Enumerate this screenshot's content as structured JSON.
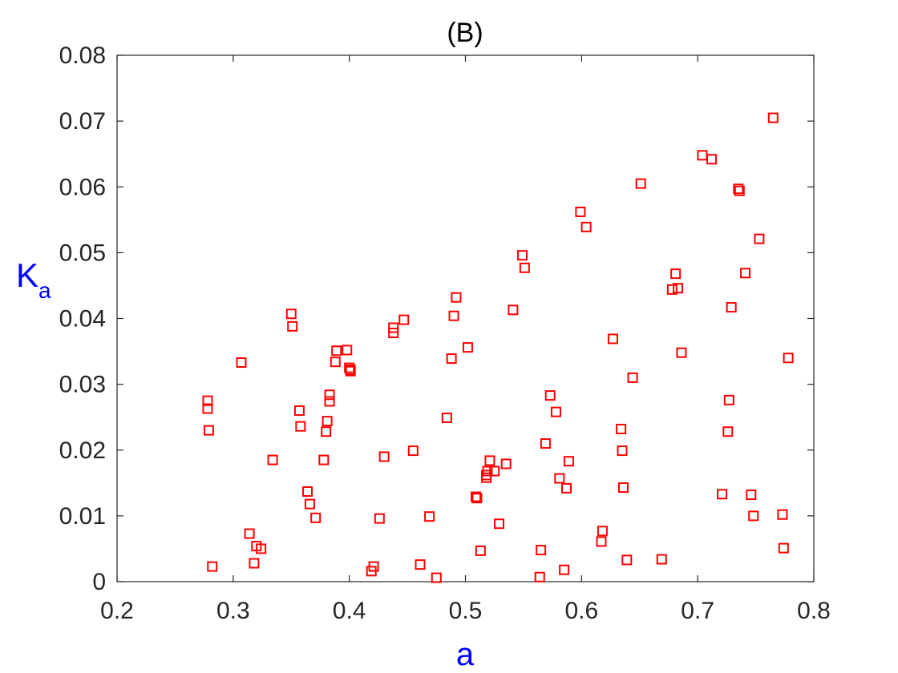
{
  "chart_data": {
    "type": "scatter",
    "title": "(B)",
    "xlabel": "a",
    "ylabel_main": "K",
    "ylabel_sub": "a",
    "xlim": [
      0.2,
      0.8
    ],
    "ylim": [
      0,
      0.08
    ],
    "xticks": [
      "0.2",
      "0.3",
      "0.4",
      "0.5",
      "0.6",
      "0.7",
      "0.8"
    ],
    "yticks": [
      "0",
      "0.01",
      "0.02",
      "0.03",
      "0.04",
      "0.05",
      "0.06",
      "0.07",
      "0.08"
    ],
    "grid": false,
    "marker": "square",
    "marker_color": "#ff0000",
    "axis_label_color": "#0000ff",
    "points": [
      {
        "x": 0.278,
        "y": 0.0275
      },
      {
        "x": 0.278,
        "y": 0.0263
      },
      {
        "x": 0.279,
        "y": 0.023
      },
      {
        "x": 0.282,
        "y": 0.0023
      },
      {
        "x": 0.307,
        "y": 0.0333
      },
      {
        "x": 0.314,
        "y": 0.0073
      },
      {
        "x": 0.318,
        "y": 0.0028
      },
      {
        "x": 0.32,
        "y": 0.0054
      },
      {
        "x": 0.324,
        "y": 0.005
      },
      {
        "x": 0.334,
        "y": 0.0185
      },
      {
        "x": 0.35,
        "y": 0.0407
      },
      {
        "x": 0.351,
        "y": 0.0388
      },
      {
        "x": 0.357,
        "y": 0.026
      },
      {
        "x": 0.358,
        "y": 0.0236
      },
      {
        "x": 0.364,
        "y": 0.0137
      },
      {
        "x": 0.366,
        "y": 0.0118
      },
      {
        "x": 0.371,
        "y": 0.0097
      },
      {
        "x": 0.378,
        "y": 0.0185
      },
      {
        "x": 0.38,
        "y": 0.0228
      },
      {
        "x": 0.381,
        "y": 0.0244
      },
      {
        "x": 0.383,
        "y": 0.0284
      },
      {
        "x": 0.383,
        "y": 0.0274
      },
      {
        "x": 0.388,
        "y": 0.0334
      },
      {
        "x": 0.389,
        "y": 0.0351
      },
      {
        "x": 0.398,
        "y": 0.0352
      },
      {
        "x": 0.4,
        "y": 0.0325
      },
      {
        "x": 0.401,
        "y": 0.032
      },
      {
        "x": 0.401,
        "y": 0.0322
      },
      {
        "x": 0.419,
        "y": 0.0016
      },
      {
        "x": 0.421,
        "y": 0.0023
      },
      {
        "x": 0.426,
        "y": 0.0096
      },
      {
        "x": 0.43,
        "y": 0.019
      },
      {
        "x": 0.438,
        "y": 0.0386
      },
      {
        "x": 0.438,
        "y": 0.0378
      },
      {
        "x": 0.447,
        "y": 0.0398
      },
      {
        "x": 0.455,
        "y": 0.0199
      },
      {
        "x": 0.461,
        "y": 0.0026
      },
      {
        "x": 0.469,
        "y": 0.0099
      },
      {
        "x": 0.475,
        "y": 0.0006
      },
      {
        "x": 0.484,
        "y": 0.0249
      },
      {
        "x": 0.488,
        "y": 0.0339
      },
      {
        "x": 0.49,
        "y": 0.0404
      },
      {
        "x": 0.492,
        "y": 0.0432
      },
      {
        "x": 0.502,
        "y": 0.0356
      },
      {
        "x": 0.509,
        "y": 0.0129
      },
      {
        "x": 0.51,
        "y": 0.0127
      },
      {
        "x": 0.513,
        "y": 0.0047
      },
      {
        "x": 0.518,
        "y": 0.0158
      },
      {
        "x": 0.518,
        "y": 0.0162
      },
      {
        "x": 0.519,
        "y": 0.0168
      },
      {
        "x": 0.521,
        "y": 0.0184
      },
      {
        "x": 0.525,
        "y": 0.0168
      },
      {
        "x": 0.529,
        "y": 0.0088
      },
      {
        "x": 0.535,
        "y": 0.0179
      },
      {
        "x": 0.541,
        "y": 0.0413
      },
      {
        "x": 0.549,
        "y": 0.0496
      },
      {
        "x": 0.551,
        "y": 0.0477
      },
      {
        "x": 0.564,
        "y": 0.0007
      },
      {
        "x": 0.565,
        "y": 0.0048
      },
      {
        "x": 0.569,
        "y": 0.021
      },
      {
        "x": 0.573,
        "y": 0.0283
      },
      {
        "x": 0.578,
        "y": 0.0258
      },
      {
        "x": 0.581,
        "y": 0.0157
      },
      {
        "x": 0.585,
        "y": 0.0018
      },
      {
        "x": 0.587,
        "y": 0.0142
      },
      {
        "x": 0.589,
        "y": 0.0183
      },
      {
        "x": 0.599,
        "y": 0.0562
      },
      {
        "x": 0.604,
        "y": 0.0539
      },
      {
        "x": 0.617,
        "y": 0.0061
      },
      {
        "x": 0.618,
        "y": 0.0077
      },
      {
        "x": 0.627,
        "y": 0.0369
      },
      {
        "x": 0.634,
        "y": 0.0232
      },
      {
        "x": 0.635,
        "y": 0.0199
      },
      {
        "x": 0.636,
        "y": 0.0143
      },
      {
        "x": 0.639,
        "y": 0.0033
      },
      {
        "x": 0.644,
        "y": 0.031
      },
      {
        "x": 0.651,
        "y": 0.0605
      },
      {
        "x": 0.669,
        "y": 0.0034
      },
      {
        "x": 0.678,
        "y": 0.0444
      },
      {
        "x": 0.681,
        "y": 0.0468
      },
      {
        "x": 0.683,
        "y": 0.0446
      },
      {
        "x": 0.686,
        "y": 0.0348
      },
      {
        "x": 0.704,
        "y": 0.0648
      },
      {
        "x": 0.712,
        "y": 0.0642
      },
      {
        "x": 0.721,
        "y": 0.0133
      },
      {
        "x": 0.726,
        "y": 0.0228
      },
      {
        "x": 0.727,
        "y": 0.0276
      },
      {
        "x": 0.729,
        "y": 0.0417
      },
      {
        "x": 0.735,
        "y": 0.0597
      },
      {
        "x": 0.736,
        "y": 0.0594
      },
      {
        "x": 0.741,
        "y": 0.0469
      },
      {
        "x": 0.746,
        "y": 0.0132
      },
      {
        "x": 0.748,
        "y": 0.01
      },
      {
        "x": 0.753,
        "y": 0.0521
      },
      {
        "x": 0.765,
        "y": 0.0705
      },
      {
        "x": 0.773,
        "y": 0.0102
      },
      {
        "x": 0.774,
        "y": 0.0051
      },
      {
        "x": 0.778,
        "y": 0.034
      }
    ]
  }
}
